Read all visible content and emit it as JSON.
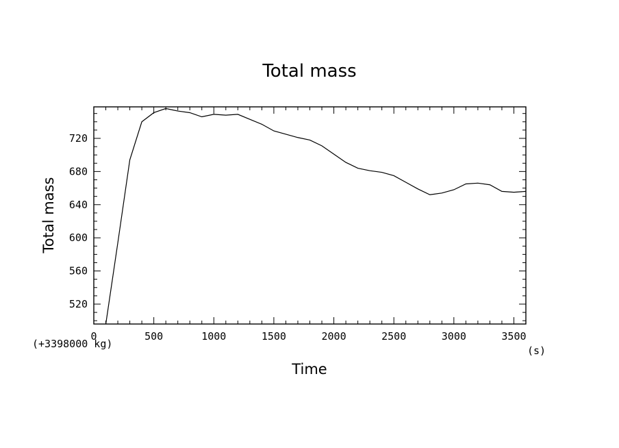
{
  "chart_data": {
    "type": "line",
    "title": "Total mass",
    "xlabel": "Time",
    "ylabel": "Total mass",
    "x_unit": "(s)",
    "y_offset_label": "(+3398000 kg)",
    "xlim": [
      0,
      3600
    ],
    "ylim": [
      496,
      758
    ],
    "x_major_ticks": [
      0,
      500,
      1000,
      1500,
      2000,
      2500,
      3000,
      3500
    ],
    "y_major_ticks": [
      520,
      560,
      600,
      640,
      680,
      720
    ],
    "x_tick_labels": [
      "0",
      "500",
      "1000",
      "1500",
      "2000",
      "2500",
      "3000",
      "3500"
    ],
    "y_tick_labels": [
      "520",
      "560",
      "600",
      "640",
      "680",
      "720"
    ],
    "grid": false,
    "series": [
      {
        "x": [
          100,
          200,
          300,
          400,
          500,
          600,
          700,
          800,
          900,
          1000,
          1100,
          1200,
          1300,
          1400,
          1500,
          1600,
          1700,
          1800,
          1900,
          2000,
          2100,
          2200,
          2300,
          2400,
          2500,
          2600,
          2700,
          2800,
          2900,
          3000,
          3100,
          3200,
          3300,
          3400,
          3500,
          3600
        ],
        "y": [
          496,
          594,
          694,
          740,
          751,
          756,
          753,
          751,
          746,
          749,
          748,
          749,
          743,
          737,
          729,
          725,
          721,
          718,
          711,
          701,
          691,
          684,
          681,
          679,
          675,
          667,
          659,
          652,
          654,
          658,
          665,
          666,
          664,
          656,
          655,
          656
        ]
      }
    ]
  }
}
